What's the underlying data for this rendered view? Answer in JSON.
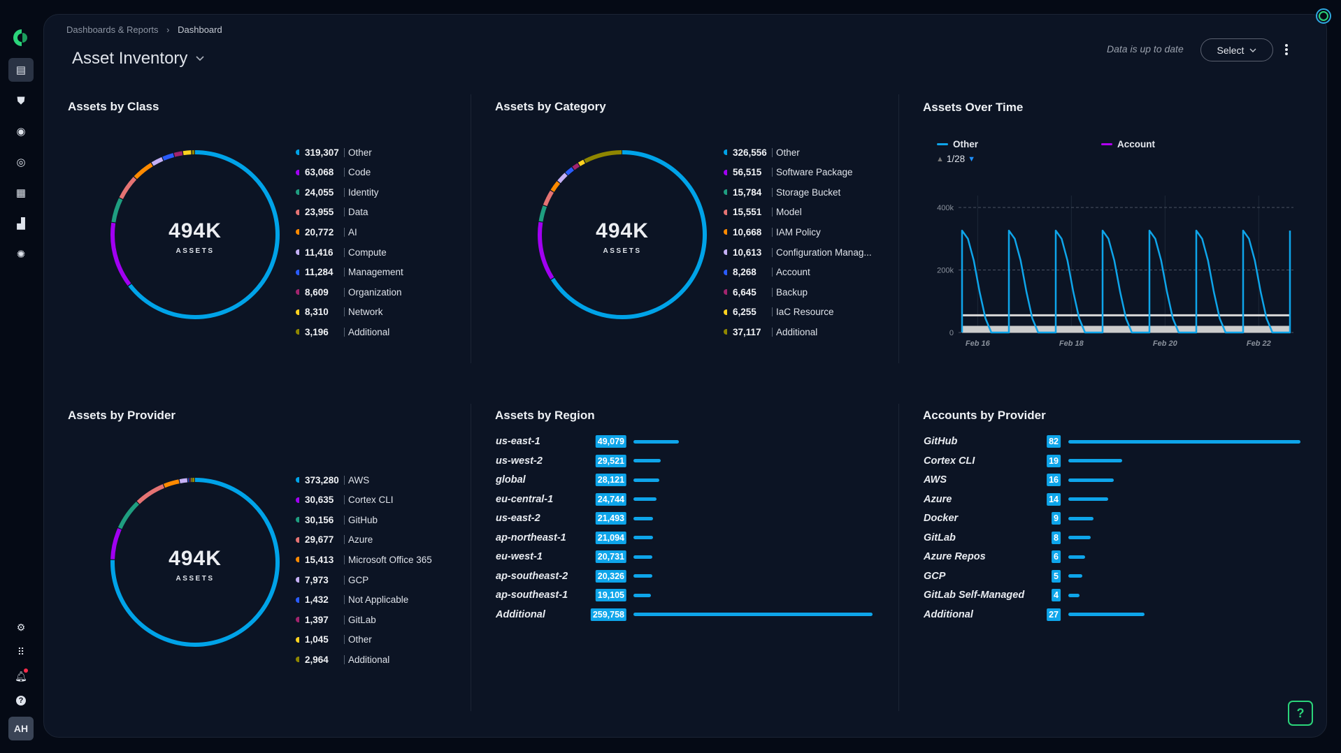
{
  "sidebar": {
    "items": [
      {
        "icon": "dashboard-icon",
        "glyph": "▤",
        "active": true
      },
      {
        "icon": "shield-alert-icon",
        "glyph": "⛊"
      },
      {
        "icon": "eye-icon",
        "glyph": "◉"
      },
      {
        "icon": "target-icon",
        "glyph": "◎"
      },
      {
        "icon": "clipboard-icon",
        "glyph": "▦"
      },
      {
        "icon": "blocks-icon",
        "glyph": "▟"
      },
      {
        "icon": "network-icon",
        "glyph": "✺"
      }
    ],
    "bottom": [
      {
        "icon": "settings-icon",
        "glyph": "⚙"
      },
      {
        "icon": "apps-grid-icon",
        "glyph": "⠿"
      },
      {
        "icon": "bell-icon",
        "glyph": "🔔︎"
      },
      {
        "icon": "help-icon",
        "glyph": "?"
      }
    ],
    "avatar": "AH"
  },
  "breadcrumb": {
    "items": [
      "Dashboards & Reports",
      "Dashboard"
    ],
    "separator": "›"
  },
  "header": {
    "title": "Asset Inventory",
    "status": "Data is up to date",
    "select_label": "Select"
  },
  "colors": {
    "accent": "#0ea5ea",
    "palette": [
      "#00a3e8",
      "#a100f2",
      "#1f9e80",
      "#e57373",
      "#ff8a00",
      "#c5b0f5",
      "#2a5cff",
      "#a2246e",
      "#ffd21f",
      "#8f8600"
    ]
  },
  "donuts": [
    {
      "title": "Assets by Class",
      "total": "494K",
      "total_label": "ASSETS",
      "items": [
        {
          "value": 319307,
          "display": "319,307",
          "label": "Other"
        },
        {
          "value": 63068,
          "display": "63,068",
          "label": "Code"
        },
        {
          "value": 24055,
          "display": "24,055",
          "label": "Identity"
        },
        {
          "value": 23955,
          "display": "23,955",
          "label": "Data"
        },
        {
          "value": 20772,
          "display": "20,772",
          "label": "AI"
        },
        {
          "value": 11416,
          "display": "11,416",
          "label": "Compute"
        },
        {
          "value": 11284,
          "display": "11,284",
          "label": "Management"
        },
        {
          "value": 8609,
          "display": "8,609",
          "label": "Organization"
        },
        {
          "value": 8310,
          "display": "8,310",
          "label": "Network"
        },
        {
          "value": 3196,
          "display": "3,196",
          "label": "Additional"
        }
      ]
    },
    {
      "title": "Assets by Category",
      "total": "494K",
      "total_label": "ASSETS",
      "items": [
        {
          "value": 326556,
          "display": "326,556",
          "label": "Other"
        },
        {
          "value": 56515,
          "display": "56,515",
          "label": "Software Package"
        },
        {
          "value": 15784,
          "display": "15,784",
          "label": "Storage Bucket"
        },
        {
          "value": 15551,
          "display": "15,551",
          "label": "Model"
        },
        {
          "value": 10668,
          "display": "10,668",
          "label": "IAM Policy"
        },
        {
          "value": 10613,
          "display": "10,613",
          "label": "Configuration Manag..."
        },
        {
          "value": 8268,
          "display": "8,268",
          "label": "Account"
        },
        {
          "value": 6645,
          "display": "6,645",
          "label": "Backup"
        },
        {
          "value": 6255,
          "display": "6,255",
          "label": "IaC Resource"
        },
        {
          "value": 37117,
          "display": "37,117",
          "label": "Additional"
        }
      ]
    },
    {
      "title": "Assets by Provider",
      "total": "494K",
      "total_label": "ASSETS",
      "items": [
        {
          "value": 373280,
          "display": "373,280",
          "label": "AWS"
        },
        {
          "value": 30635,
          "display": "30,635",
          "label": "Cortex CLI"
        },
        {
          "value": 30156,
          "display": "30,156",
          "label": "GitHub"
        },
        {
          "value": 29677,
          "display": "29,677",
          "label": "Azure"
        },
        {
          "value": 15413,
          "display": "15,413",
          "label": "Microsoft Office 365"
        },
        {
          "value": 7973,
          "display": "7,973",
          "label": "GCP"
        },
        {
          "value": 1432,
          "display": "1,432",
          "label": "Not Applicable"
        },
        {
          "value": 1397,
          "display": "1,397",
          "label": "GitLab"
        },
        {
          "value": 1045,
          "display": "1,045",
          "label": "Other"
        },
        {
          "value": 2964,
          "display": "2,964",
          "label": "Additional"
        }
      ]
    }
  ],
  "regions": {
    "title": "Assets by Region",
    "items": [
      {
        "label": "us-east-1",
        "value": 49079,
        "display": "49,079"
      },
      {
        "label": "us-west-2",
        "value": 29521,
        "display": "29,521"
      },
      {
        "label": "global",
        "value": 28121,
        "display": "28,121"
      },
      {
        "label": "eu-central-1",
        "value": 24744,
        "display": "24,744"
      },
      {
        "label": "us-east-2",
        "value": 21493,
        "display": "21,493"
      },
      {
        "label": "ap-northeast-1",
        "value": 21094,
        "display": "21,094"
      },
      {
        "label": "eu-west-1",
        "value": 20731,
        "display": "20,731"
      },
      {
        "label": "ap-southeast-2",
        "value": 20326,
        "display": "20,326"
      },
      {
        "label": "ap-southeast-1",
        "value": 19105,
        "display": "19,105"
      },
      {
        "label": "Additional",
        "value": 259758,
        "display": "259,758"
      }
    ]
  },
  "accounts": {
    "title": "Accounts by Provider",
    "items": [
      {
        "label": "GitHub",
        "value": 82,
        "display": "82"
      },
      {
        "label": "Cortex CLI",
        "value": 19,
        "display": "19"
      },
      {
        "label": "AWS",
        "value": 16,
        "display": "16"
      },
      {
        "label": "Azure",
        "value": 14,
        "display": "14"
      },
      {
        "label": "Docker",
        "value": 9,
        "display": "9"
      },
      {
        "label": "GitLab",
        "value": 8,
        "display": "8"
      },
      {
        "label": "Azure Repos",
        "value": 6,
        "display": "6"
      },
      {
        "label": "GCP",
        "value": 5,
        "display": "5"
      },
      {
        "label": "GitLab Self-Managed",
        "value": 4,
        "display": "4"
      },
      {
        "label": "Additional",
        "value": 27,
        "display": "27"
      }
    ]
  },
  "chart_data": {
    "type": "line",
    "title": "Assets Over Time",
    "legend": {
      "placement": "top-left",
      "entries": [
        {
          "name": "Other",
          "color": "#0ea5ea"
        },
        {
          "name": "Account",
          "color": "#b000f0"
        }
      ],
      "page": "1/28"
    },
    "xlim": [
      "Feb 15 16:00",
      "Feb 22 16:00"
    ],
    "xticks": [
      "Feb 16",
      "Feb 18",
      "Feb 20",
      "Feb 22"
    ],
    "ylim": [
      0,
      450000
    ],
    "yticks": [
      {
        "value": 0,
        "label": "0"
      },
      {
        "value": 200000,
        "label": "200k"
      },
      {
        "value": 400000,
        "label": "400k"
      }
    ],
    "grid": "horizontal dashed + vertical",
    "series": [
      {
        "name": "Other",
        "color": "#0ea5ea",
        "points": [
          [
            "Feb 15 16:00",
            0
          ],
          [
            "Feb 15 16:00",
            326000
          ],
          [
            "Feb 15 19:00",
            300000
          ],
          [
            "Feb 15 22:00",
            230000
          ],
          [
            "Feb 16 01:00",
            130000
          ],
          [
            "Feb 16 04:00",
            45000
          ],
          [
            "Feb 16 07:00",
            0
          ],
          [
            "Feb 16 16:00",
            0
          ],
          [
            "Feb 16 16:00",
            326000
          ],
          [
            "Feb 16 19:00",
            300000
          ],
          [
            "Feb 16 22:00",
            230000
          ],
          [
            "Feb 17 01:00",
            130000
          ],
          [
            "Feb 17 04:00",
            45000
          ],
          [
            "Feb 17 07:00",
            0
          ],
          [
            "Feb 17 16:00",
            0
          ],
          [
            "Feb 17 16:00",
            326000
          ],
          [
            "Feb 17 19:00",
            300000
          ],
          [
            "Feb 17 22:00",
            230000
          ],
          [
            "Feb 18 01:00",
            130000
          ],
          [
            "Feb 18 04:00",
            45000
          ],
          [
            "Feb 18 07:00",
            0
          ],
          [
            "Feb 18 16:00",
            0
          ],
          [
            "Feb 18 16:00",
            326000
          ],
          [
            "Feb 18 19:00",
            300000
          ],
          [
            "Feb 18 22:00",
            230000
          ],
          [
            "Feb 19 01:00",
            130000
          ],
          [
            "Feb 19 04:00",
            45000
          ],
          [
            "Feb 19 07:00",
            0
          ],
          [
            "Feb 19 16:00",
            0
          ],
          [
            "Feb 19 16:00",
            326000
          ],
          [
            "Feb 19 19:00",
            300000
          ],
          [
            "Feb 19 22:00",
            230000
          ],
          [
            "Feb 20 01:00",
            130000
          ],
          [
            "Feb 20 04:00",
            45000
          ],
          [
            "Feb 20 07:00",
            0
          ],
          [
            "Feb 20 16:00",
            0
          ],
          [
            "Feb 20 16:00",
            326000
          ],
          [
            "Feb 20 19:00",
            300000
          ],
          [
            "Feb 20 22:00",
            230000
          ],
          [
            "Feb 21 01:00",
            130000
          ],
          [
            "Feb 21 04:00",
            45000
          ],
          [
            "Feb 21 07:00",
            0
          ],
          [
            "Feb 21 16:00",
            0
          ],
          [
            "Feb 21 16:00",
            326000
          ],
          [
            "Feb 21 19:00",
            300000
          ],
          [
            "Feb 21 22:00",
            230000
          ],
          [
            "Feb 22 01:00",
            130000
          ],
          [
            "Feb 22 04:00",
            45000
          ],
          [
            "Feb 22 07:00",
            0
          ],
          [
            "Feb 22 16:00",
            0
          ],
          [
            "Feb 22 16:00",
            326000
          ]
        ]
      },
      {
        "color": "#d9d9d9",
        "points": [
          [
            "Feb 15 16:00",
            55000
          ],
          [
            "Feb 22 16:00",
            55000
          ]
        ]
      },
      {
        "color": "#cccccc",
        "points": [
          [
            "Feb 15 16:00",
            10000
          ],
          [
            "Feb 22 16:00",
            10000
          ]
        ],
        "band": true
      }
    ]
  }
}
